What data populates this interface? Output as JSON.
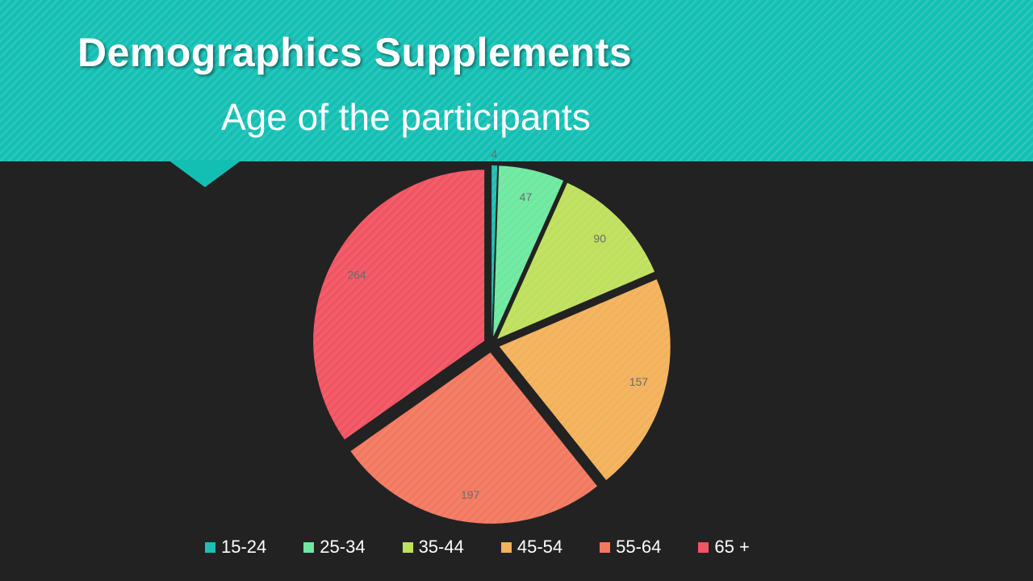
{
  "slide": {
    "title": "Demographics Supplements",
    "subtitle": "Age of the participants"
  },
  "chart_data": {
    "type": "pie",
    "categories": [
      "15-24",
      "25-34",
      "35-44",
      "45-54",
      "55-64",
      "65 +"
    ],
    "values": [
      4,
      47,
      90,
      157,
      197,
      264
    ],
    "colors": [
      "#1fbfb4",
      "#6ee8a0",
      "#bfe05c",
      "#f2b15a",
      "#f2795f",
      "#f15462"
    ],
    "exploded": true,
    "data_labels": true,
    "legend": "bottom"
  }
}
